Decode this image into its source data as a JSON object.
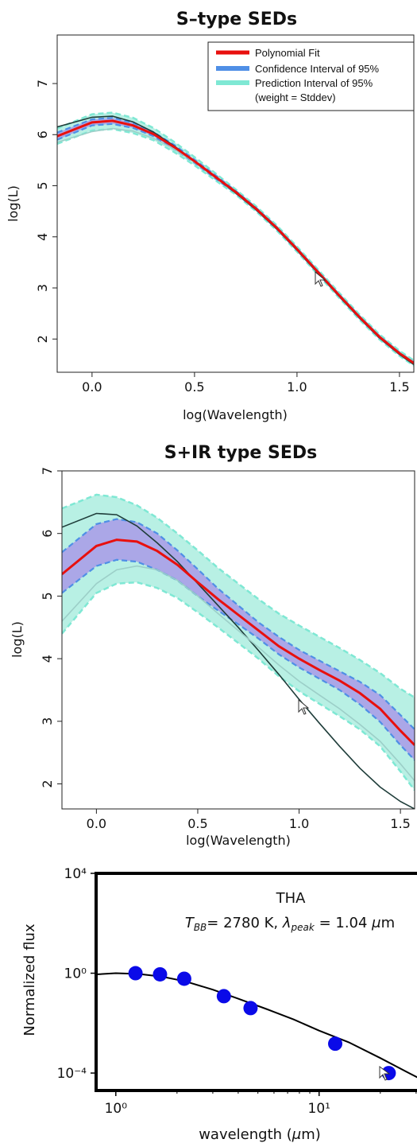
{
  "colors": {
    "fit": "#e8100e",
    "confidence": "#4f8fe6",
    "confidence_fill": "#a89ae8",
    "prediction": "#7fe8d4",
    "prediction_fill": "#b8f0e4",
    "envelope_dark": "#1f3d3a",
    "envelope_light": "#9ccfc8",
    "points": "#0a0ae8"
  },
  "chart_data": [
    {
      "type": "line",
      "title": "S–type SEDs",
      "xlabel": "log(Wavelength)",
      "ylabel": "log(L)",
      "xlim": [
        -0.17,
        1.57
      ],
      "ylim": [
        1.35,
        7.95
      ],
      "xticks": [
        "0.0",
        "0.5",
        "1.0",
        "1.5"
      ],
      "yticks": [
        "2",
        "3",
        "4",
        "5",
        "6",
        "7"
      ],
      "legend": {
        "position": "top-right",
        "entries": [
          "Polynomial Fit",
          "Confidence Interval of 95%",
          "Prediction Interval of 95%",
          "(weight = Stddev)"
        ]
      },
      "x": [
        -0.17,
        0.0,
        0.1,
        0.2,
        0.3,
        0.4,
        0.5,
        0.6,
        0.7,
        0.8,
        0.9,
        1.0,
        1.1,
        1.2,
        1.3,
        1.4,
        1.5,
        1.57
      ],
      "series": [
        {
          "name": "Polynomial Fit",
          "values": [
            5.97,
            6.24,
            6.27,
            6.18,
            6.01,
            5.76,
            5.48,
            5.18,
            4.88,
            4.55,
            4.18,
            3.76,
            3.32,
            2.88,
            2.45,
            2.05,
            1.72,
            1.53
          ]
        },
        {
          "name": "Confidence Interval of 95% (upper)",
          "values": [
            6.04,
            6.3,
            6.33,
            6.23,
            6.05,
            5.8,
            5.51,
            5.21,
            4.9,
            4.57,
            4.2,
            3.78,
            3.34,
            2.9,
            2.47,
            2.07,
            1.74,
            1.55
          ]
        },
        {
          "name": "Confidence Interval of 95% (lower)",
          "values": [
            5.9,
            6.18,
            6.21,
            6.13,
            5.97,
            5.72,
            5.45,
            5.15,
            4.86,
            4.53,
            4.16,
            3.74,
            3.3,
            2.86,
            2.43,
            2.03,
            1.7,
            1.51
          ]
        },
        {
          "name": "Prediction Interval of 95% (upper)",
          "values": [
            6.12,
            6.4,
            6.43,
            6.33,
            6.13,
            5.86,
            5.56,
            5.25,
            4.93,
            4.6,
            4.23,
            3.81,
            3.37,
            2.93,
            2.5,
            2.1,
            1.77,
            1.58
          ]
        },
        {
          "name": "Prediction Interval of 95% (lower)",
          "values": [
            5.82,
            6.08,
            6.11,
            6.03,
            5.89,
            5.66,
            5.4,
            5.11,
            4.83,
            4.5,
            4.13,
            3.71,
            3.27,
            2.83,
            2.4,
            2.0,
            1.67,
            1.48
          ]
        },
        {
          "name": "",
          "values": [
            6.15,
            6.34,
            6.36,
            6.25,
            6.05,
            5.78,
            5.48,
            5.17,
            4.86,
            4.53,
            4.16,
            3.74,
            3.3,
            2.86,
            2.43,
            2.03,
            1.7,
            1.5
          ]
        },
        {
          "name": "",
          "values": [
            5.85,
            6.06,
            6.12,
            6.07,
            5.93,
            5.72,
            5.46,
            5.17,
            4.88,
            4.56,
            4.2,
            3.78,
            3.34,
            2.9,
            2.47,
            2.07,
            1.74,
            1.55
          ]
        }
      ]
    },
    {
      "type": "line",
      "title": "S+IR type SEDs",
      "xlabel": "log(Wavelength)",
      "ylabel": "log(L)",
      "xlim": [
        -0.17,
        1.57
      ],
      "ylim": [
        1.6,
        7.0
      ],
      "xticks": [
        "0.0",
        "0.5",
        "1.0",
        "1.5"
      ],
      "yticks": [
        "2",
        "3",
        "4",
        "5",
        "6",
        "7"
      ],
      "x": [
        -0.17,
        0.0,
        0.1,
        0.2,
        0.3,
        0.4,
        0.5,
        0.6,
        0.7,
        0.8,
        0.9,
        1.0,
        1.1,
        1.2,
        1.3,
        1.4,
        1.5,
        1.57
      ],
      "series": [
        {
          "name": "Polynomial Fit",
          "values": [
            5.35,
            5.8,
            5.9,
            5.87,
            5.72,
            5.5,
            5.22,
            4.95,
            4.7,
            4.45,
            4.2,
            4.0,
            3.82,
            3.65,
            3.45,
            3.2,
            2.85,
            2.62
          ]
        },
        {
          "name": "Confidence Interval of 95% (upper)",
          "values": [
            5.7,
            6.15,
            6.23,
            6.18,
            6.0,
            5.73,
            5.43,
            5.12,
            4.85,
            4.58,
            4.35,
            4.14,
            3.97,
            3.8,
            3.63,
            3.42,
            3.1,
            2.87
          ]
        },
        {
          "name": "Confidence Interval of 95% (lower)",
          "values": [
            5.05,
            5.48,
            5.58,
            5.55,
            5.42,
            5.25,
            5.0,
            4.77,
            4.55,
            4.32,
            4.07,
            3.86,
            3.68,
            3.5,
            3.27,
            2.99,
            2.62,
            2.38
          ]
        },
        {
          "name": "Prediction Interval of 95% (upper)",
          "values": [
            6.4,
            6.62,
            6.58,
            6.45,
            6.25,
            6.0,
            5.73,
            5.45,
            5.2,
            4.95,
            4.72,
            4.53,
            4.35,
            4.17,
            3.98,
            3.77,
            3.52,
            3.38
          ]
        },
        {
          "name": "Prediction Interval of 95% (lower)",
          "values": [
            4.4,
            5.05,
            5.2,
            5.22,
            5.13,
            4.97,
            4.74,
            4.5,
            4.25,
            4.0,
            3.72,
            3.48,
            3.28,
            3.08,
            2.87,
            2.6,
            2.2,
            1.9
          ]
        },
        {
          "name": "",
          "values": [
            6.1,
            6.32,
            6.3,
            6.12,
            5.85,
            5.55,
            5.2,
            4.85,
            4.5,
            4.13,
            3.75,
            3.35,
            2.97,
            2.6,
            2.25,
            1.95,
            1.72,
            1.6
          ]
        },
        {
          "name": "",
          "values": [
            4.6,
            5.2,
            5.42,
            5.48,
            5.42,
            5.25,
            5.0,
            4.72,
            4.45,
            4.18,
            3.9,
            3.64,
            3.42,
            3.2,
            2.95,
            2.68,
            2.32,
            2.05
          ]
        }
      ]
    },
    {
      "type": "scatter",
      "title": "",
      "xlabel": "wavelength (μm)",
      "ylabel": "Normalized flux",
      "x_scale": "log",
      "y_scale": "log",
      "xlim": [
        0.8,
        35
      ],
      "ylim": [
        2e-05,
        10000
      ],
      "xticks": [
        "10⁰",
        "10¹"
      ],
      "yticks": [
        "10⁴",
        "10⁰",
        "10⁻⁴"
      ],
      "annotations": {
        "name": "THA",
        "temp_line": "T_BB= 2780 K, λ_peak =  1.04 μm"
      },
      "points": {
        "x": [
          1.25,
          1.65,
          2.17,
          3.4,
          4.6,
          12.0,
          22.0
        ],
        "y": [
          1.0,
          0.9,
          0.6,
          0.12,
          0.04,
          0.0015,
          0.0001
        ]
      },
      "model_curve": {
        "x": [
          0.8,
          1.0,
          1.3,
          1.7,
          2.2,
          3.0,
          4.0,
          5.5,
          7.5,
          10.0,
          14.0,
          20.0,
          28.0,
          35.0
        ],
        "y": [
          0.9,
          1.0,
          0.93,
          0.72,
          0.47,
          0.22,
          0.095,
          0.037,
          0.014,
          0.005,
          0.0017,
          0.0004,
          9.5e-05,
          3.8e-05
        ]
      }
    }
  ]
}
